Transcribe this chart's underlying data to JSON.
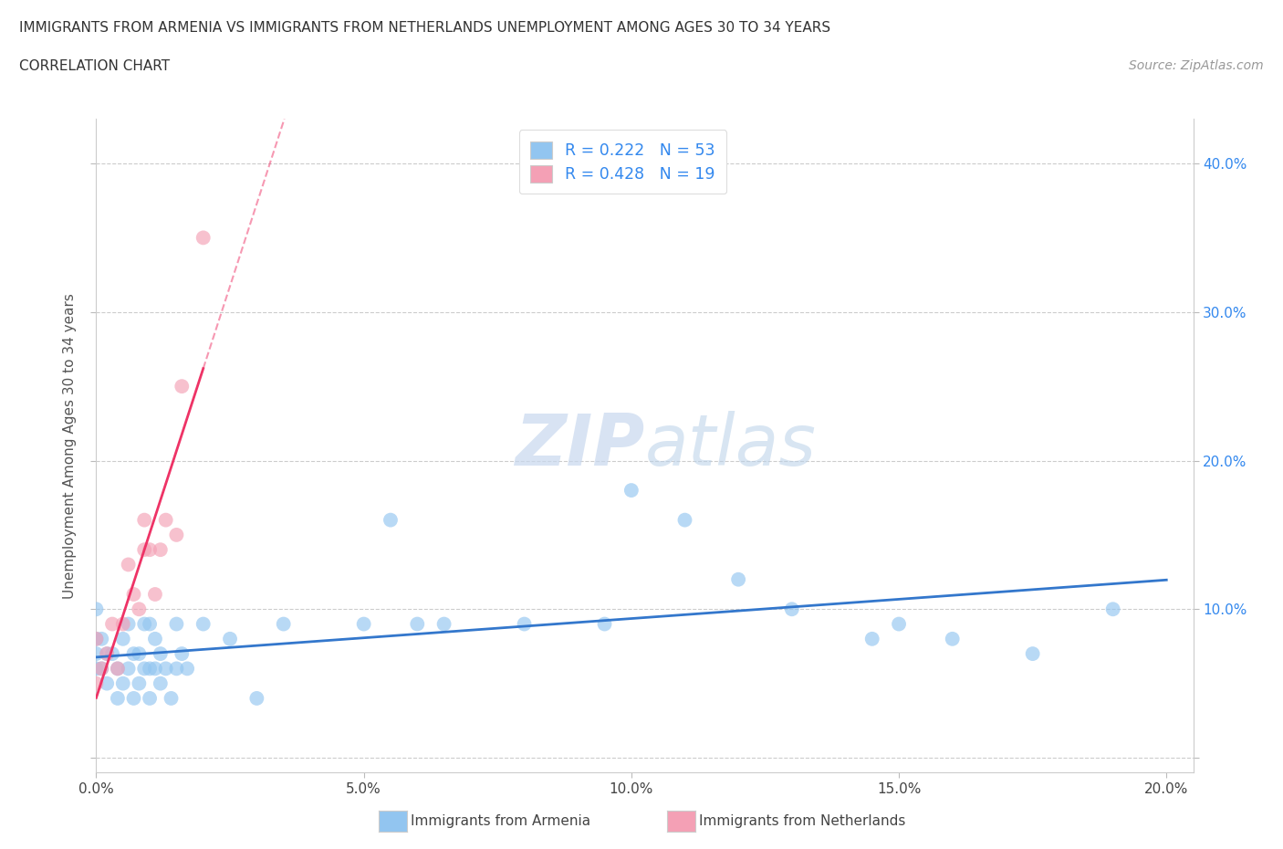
{
  "title_line1": "IMMIGRANTS FROM ARMENIA VS IMMIGRANTS FROM NETHERLANDS UNEMPLOYMENT AMONG AGES 30 TO 34 YEARS",
  "title_line2": "CORRELATION CHART",
  "source_text": "Source: ZipAtlas.com",
  "ylabel": "Unemployment Among Ages 30 to 34 years",
  "xlim": [
    0.0,
    0.205
  ],
  "ylim": [
    -0.01,
    0.43
  ],
  "xticks": [
    0.0,
    0.05,
    0.1,
    0.15,
    0.2
  ],
  "yticks": [
    0.0,
    0.1,
    0.2,
    0.3,
    0.4
  ],
  "xtick_labels": [
    "0.0%",
    "5.0%",
    "10.0%",
    "15.0%",
    "20.0%"
  ],
  "right_ytick_labels": [
    "",
    "10.0%",
    "20.0%",
    "30.0%",
    "40.0%"
  ],
  "legend_text_1": "R = 0.222   N = 53",
  "legend_text_2": "R = 0.428   N = 19",
  "color_armenia": "#92C5F0",
  "color_netherlands": "#F4A0B5",
  "trendline_color_armenia": "#3377CC",
  "trendline_color_netherlands": "#EE3366",
  "right_axis_color": "#3388EE",
  "watermark_color": "#C8D8EE",
  "armenia_x": [
    0.0,
    0.0,
    0.0,
    0.0,
    0.001,
    0.001,
    0.002,
    0.002,
    0.003,
    0.004,
    0.004,
    0.005,
    0.005,
    0.006,
    0.006,
    0.007,
    0.007,
    0.008,
    0.008,
    0.009,
    0.009,
    0.01,
    0.01,
    0.01,
    0.011,
    0.011,
    0.012,
    0.012,
    0.013,
    0.014,
    0.015,
    0.015,
    0.016,
    0.017,
    0.02,
    0.025,
    0.03,
    0.035,
    0.05,
    0.055,
    0.06,
    0.065,
    0.08,
    0.095,
    0.1,
    0.11,
    0.12,
    0.13,
    0.145,
    0.15,
    0.16,
    0.175,
    0.19
  ],
  "armenia_y": [
    0.06,
    0.07,
    0.08,
    0.1,
    0.06,
    0.08,
    0.05,
    0.07,
    0.07,
    0.04,
    0.06,
    0.05,
    0.08,
    0.06,
    0.09,
    0.04,
    0.07,
    0.05,
    0.07,
    0.06,
    0.09,
    0.04,
    0.06,
    0.09,
    0.06,
    0.08,
    0.05,
    0.07,
    0.06,
    0.04,
    0.06,
    0.09,
    0.07,
    0.06,
    0.09,
    0.08,
    0.04,
    0.09,
    0.09,
    0.16,
    0.09,
    0.09,
    0.09,
    0.09,
    0.18,
    0.16,
    0.12,
    0.1,
    0.08,
    0.09,
    0.08,
    0.07,
    0.1
  ],
  "netherlands_x": [
    0.0,
    0.0,
    0.001,
    0.002,
    0.003,
    0.004,
    0.005,
    0.006,
    0.007,
    0.008,
    0.009,
    0.009,
    0.01,
    0.011,
    0.012,
    0.013,
    0.015,
    0.016,
    0.02
  ],
  "netherlands_y": [
    0.05,
    0.08,
    0.06,
    0.07,
    0.09,
    0.06,
    0.09,
    0.13,
    0.11,
    0.1,
    0.14,
    0.16,
    0.14,
    0.11,
    0.14,
    0.16,
    0.15,
    0.25,
    0.35
  ]
}
